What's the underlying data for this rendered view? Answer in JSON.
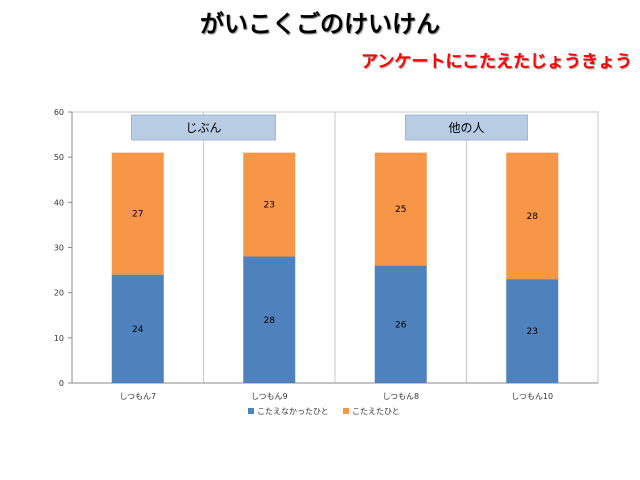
{
  "title": "がいこくごのけいけん",
  "subtitle": "アンケートにこたえたじょうきょう",
  "chart_data": {
    "type": "bar",
    "stacked": true,
    "categories": [
      "しつもん7",
      "しつもん9",
      "しつもん8",
      "しつもん10"
    ],
    "series": [
      {
        "name": "こたえなかったひと",
        "values": [
          24,
          28,
          26,
          23
        ],
        "color": "#4f81bd"
      },
      {
        "name": "こたえたひと",
        "values": [
          27,
          23,
          25,
          28
        ],
        "color": "#f79646"
      }
    ],
    "ylim": [
      0,
      60
    ],
    "yticks": [
      0,
      10,
      20,
      30,
      40,
      50,
      60
    ],
    "grid": "vertical-category-lines",
    "legend": "bottom",
    "groups": [
      {
        "label": "じぶん",
        "categories": [
          0,
          1
        ]
      },
      {
        "label": "他の人",
        "categories": [
          2,
          3
        ]
      }
    ],
    "group_box_color": "#b8cce4"
  }
}
